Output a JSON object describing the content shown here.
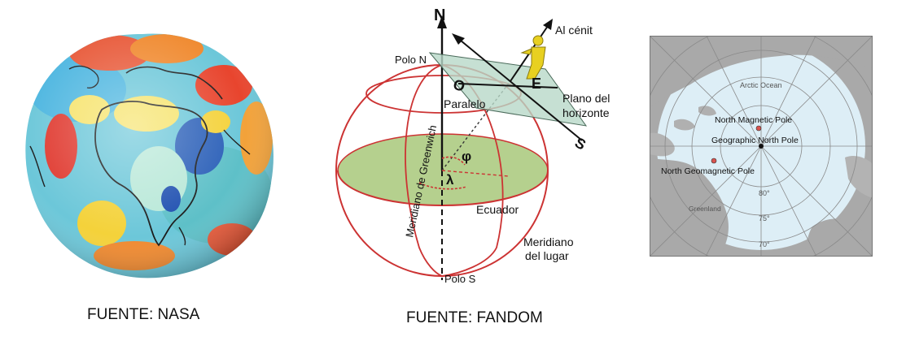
{
  "panels": {
    "geoid": {
      "caption": "FUENTE: NASA"
    },
    "celestial": {
      "caption": "FUENTE: FANDOM",
      "labels": {
        "north": "N",
        "zenith": "Al cénit",
        "north_pole": "Polo N",
        "horizon_plane": "Plano del",
        "horizon_plane_2": "horizonte",
        "parallel": "Paralelo",
        "greenwich": "Meridiano de Greenwich",
        "phi": "φ",
        "lambda": "λ",
        "equator": "Ecuador",
        "local_meridian": "Meridiano",
        "local_meridian_2": "del lugar",
        "south_pole": "Polo S",
        "west": "O",
        "east": "E",
        "south": "S"
      },
      "colors": {
        "circles": "#cc3333",
        "plane": "#a8c87a",
        "horizon": "#b8d8c8",
        "figure": "#e8d020"
      }
    },
    "arctic": {
      "labels": {
        "ocean": "Arctic Ocean",
        "magnetic_pole": "North Magnetic Pole",
        "geographic_pole": "Geographic North Pole",
        "geomagnetic_pole": "North Geomagnetic Pole",
        "greenland": "Greenland",
        "lat80": "80°",
        "lat75": "75°",
        "lat70": "70°"
      },
      "colors": {
        "ocean": "#ddeef6",
        "land": "#a9a9a9",
        "pole_marker": "#d9534f"
      }
    }
  }
}
